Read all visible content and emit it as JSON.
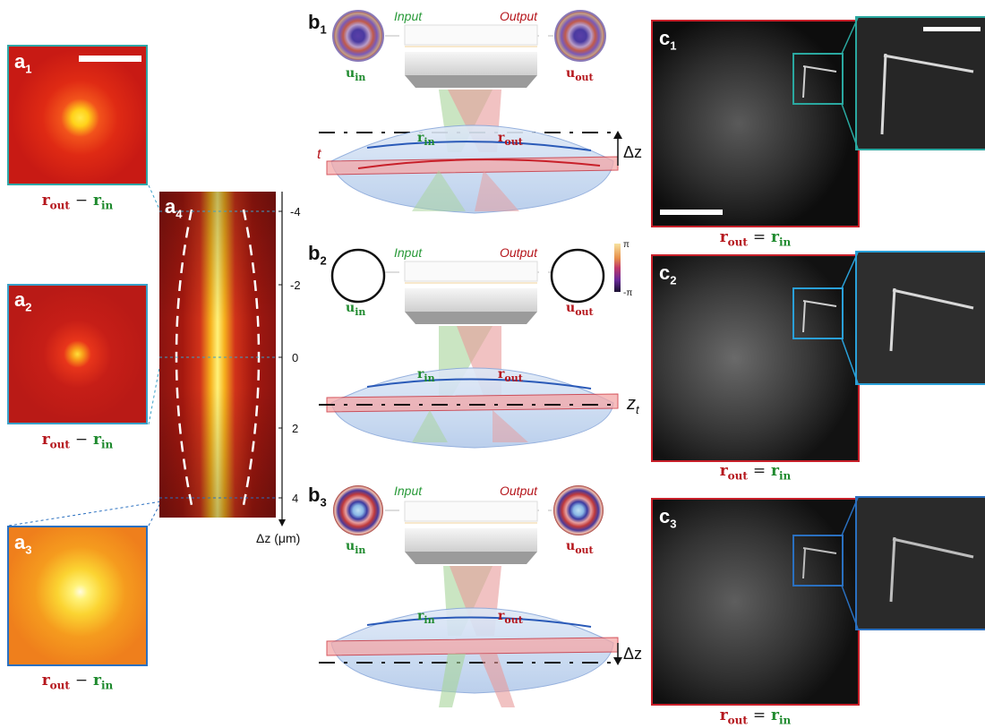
{
  "panels_a": [
    {
      "letter": "a",
      "sub": "1",
      "caption": {
        "left": "r",
        "left_sub": "out",
        "op": "−",
        "right": "r",
        "right_sub": "in"
      }
    },
    {
      "letter": "a",
      "sub": "2",
      "caption": {
        "left": "r",
        "left_sub": "out",
        "op": "−",
        "right": "r",
        "right_sub": "in"
      }
    },
    {
      "letter": "a",
      "sub": "3",
      "caption": {
        "left": "r",
        "left_sub": "out",
        "op": "−",
        "right": "r",
        "right_sub": "in"
      }
    }
  ],
  "panel_a4": {
    "letter": "a",
    "sub": "4",
    "axis_label": "Δz (μm)",
    "ticks": [
      "-4",
      "-2",
      "0",
      "2",
      "4"
    ]
  },
  "panels_b": [
    {
      "letter": "b",
      "sub": "1",
      "input_label": "Input",
      "output_label": "Output",
      "u_in": "u",
      "u_in_sub": "in",
      "u_out": "u",
      "u_out_sub": "out",
      "r_in": "r",
      "r_in_sub": "in",
      "r_out": "r",
      "r_out_sub": "out",
      "t_label": "t",
      "shift_label": "Δz"
    },
    {
      "letter": "b",
      "sub": "2",
      "input_label": "Input",
      "output_label": "Output",
      "u_in": "u",
      "u_in_sub": "in",
      "u_out": "u",
      "u_out_sub": "out",
      "r_in": "r",
      "r_in_sub": "in",
      "r_out": "r",
      "r_out_sub": "out",
      "z_label": "z",
      "z_sub": "t",
      "cb_max": "π",
      "cb_min": "-π"
    },
    {
      "letter": "b",
      "sub": "3",
      "input_label": "Input",
      "output_label": "Output",
      "u_in": "u",
      "u_in_sub": "in",
      "u_out": "u",
      "u_out_sub": "out",
      "r_in": "r",
      "r_in_sub": "in",
      "r_out": "r",
      "r_out_sub": "out",
      "shift_label": "Δz"
    }
  ],
  "panels_c": [
    {
      "letter": "c",
      "sub": "1",
      "frame_color": "#c8202a",
      "zoom_color": "#2aa8a0",
      "caption": {
        "left": "r",
        "left_sub": "out",
        "op": "=",
        "right": "r",
        "right_sub": "in"
      }
    },
    {
      "letter": "c",
      "sub": "2",
      "frame_color": "#c8202a",
      "zoom_color": "#2aa0d8",
      "caption": {
        "left": "r",
        "left_sub": "out",
        "op": "=",
        "right": "r",
        "right_sub": "in"
      }
    },
    {
      "letter": "c",
      "sub": "3",
      "frame_color": "#c8202a",
      "zoom_color": "#2a70c0",
      "caption": {
        "left": "r",
        "left_sub": "out",
        "op": "=",
        "right": "r",
        "right_sub": "in"
      }
    }
  ],
  "colors": {
    "input": "#2a9a3a",
    "output": "#b5161c",
    "tissue": "#a8c4ea",
    "frame_a": "#3aa0c8"
  }
}
